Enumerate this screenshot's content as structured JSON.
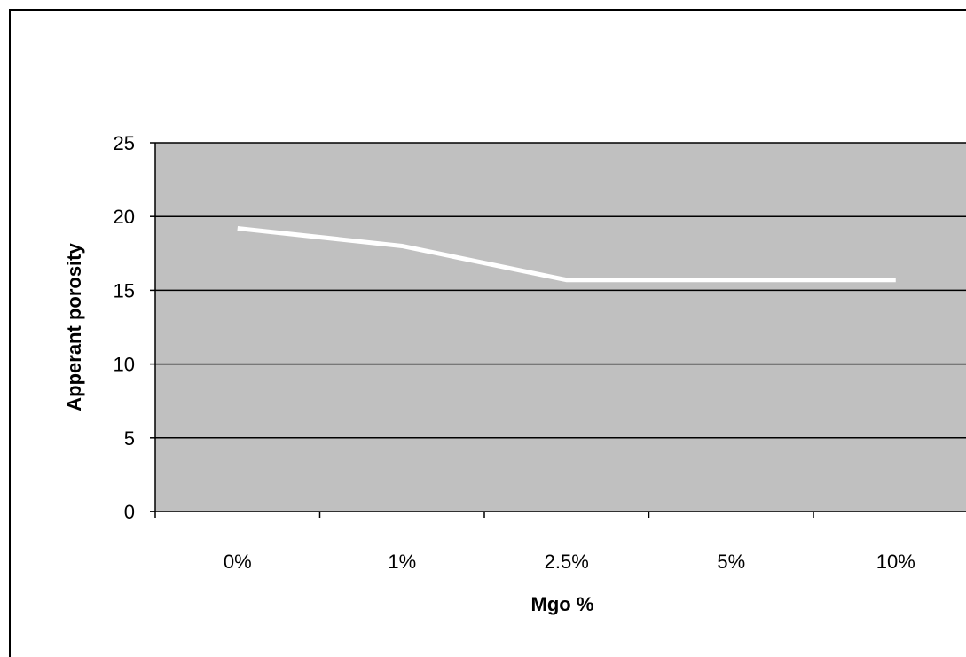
{
  "chart_data": {
    "type": "line",
    "title": "",
    "xlabel": "Mgo %",
    "ylabel": "Apperant porosity",
    "categories": [
      "0%",
      "1%",
      "2.5%",
      "5%",
      "10%"
    ],
    "series": [
      {
        "values": [
          19.2,
          18.0,
          15.7,
          15.7,
          15.7
        ]
      }
    ],
    "ylim": [
      0,
      25
    ],
    "yticks": [
      0,
      5,
      10,
      15,
      20,
      25
    ],
    "grid": true,
    "plot_background": "#c0c0c0",
    "line_color": "#ffffff",
    "legend": "none"
  }
}
